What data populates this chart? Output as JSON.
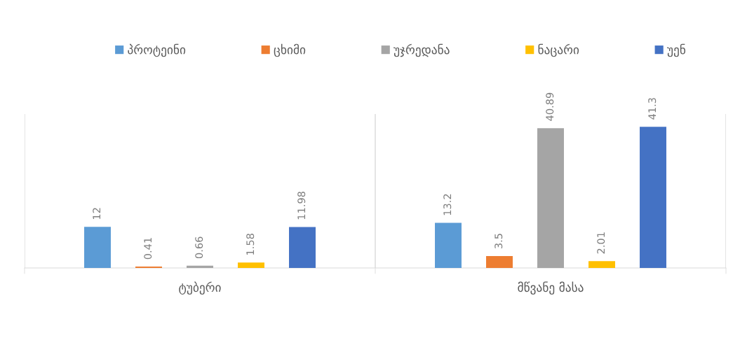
{
  "chart_data": {
    "type": "bar",
    "categories": [
      "ტუბერი",
      "მწვანე მასა"
    ],
    "series": [
      {
        "name": "პროტეინი",
        "color": "#5b9bd5",
        "values": [
          12,
          13.2
        ]
      },
      {
        "name": "ცხიმი",
        "color": "#ed7d31",
        "values": [
          0.41,
          3.5
        ]
      },
      {
        "name": "უჯრედანა",
        "color": "#a5a5a5",
        "values": [
          0.66,
          40.89
        ]
      },
      {
        "name": "ნაცარი",
        "color": "#ffc000",
        "values": [
          1.58,
          2.01
        ]
      },
      {
        "name": "უენ",
        "color": "#4472c4",
        "values": [
          11.98,
          41.3
        ]
      }
    ],
    "data_labels": true,
    "legend": "top",
    "grid": "x"
  }
}
